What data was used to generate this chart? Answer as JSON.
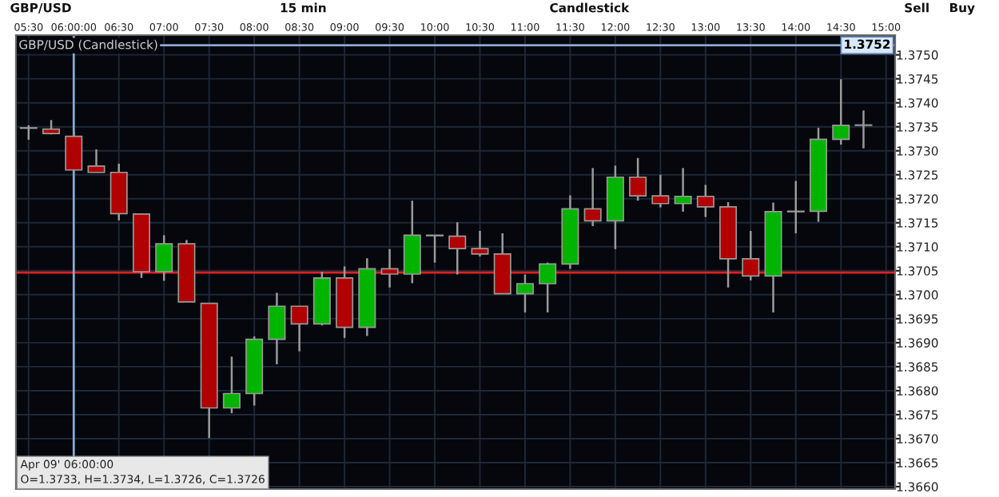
{
  "chart_data": {
    "type": "candlestick",
    "title": "GBP/USD (Candlestick)",
    "x": [
      5.5,
      5.75,
      6.0,
      6.25,
      6.5,
      6.75,
      7.0,
      7.25,
      7.5,
      7.75,
      8.0,
      8.25,
      8.5,
      8.75,
      9.0,
      9.25,
      9.5,
      9.75,
      10.0,
      10.25,
      10.5,
      10.75,
      11.0,
      11.25,
      11.5,
      11.75,
      12.0,
      12.25,
      12.5,
      12.75,
      13.0,
      13.25,
      13.5,
      13.75,
      14.0,
      14.25,
      14.5,
      14.75
    ],
    "ohlc": [
      [
        1.37347,
        1.37353,
        1.37323,
        1.37347
      ],
      [
        1.37345,
        1.37364,
        1.37334,
        1.37336
      ],
      [
        1.3733,
        1.3734,
        1.3726,
        1.3726
      ],
      [
        1.37268,
        1.37303,
        1.37255,
        1.37255
      ],
      [
        1.37255,
        1.37273,
        1.37155,
        1.37169
      ],
      [
        1.37168,
        1.37168,
        1.37035,
        1.37048
      ],
      [
        1.37048,
        1.37124,
        1.37029,
        1.37106
      ],
      [
        1.37106,
        1.37114,
        1.36985,
        1.36985
      ],
      [
        1.36982,
        1.36982,
        1.36701,
        1.36764
      ],
      [
        1.36764,
        1.36871,
        1.36753,
        1.36794
      ],
      [
        1.36794,
        1.36913,
        1.36769,
        1.36907
      ],
      [
        1.36907,
        1.37004,
        1.36855,
        1.36976
      ],
      [
        1.36976,
        1.36976,
        1.36882,
        1.36939
      ],
      [
        1.36939,
        1.37048,
        1.36936,
        1.37035
      ],
      [
        1.37035,
        1.37059,
        1.3691,
        1.36932
      ],
      [
        1.36932,
        1.37076,
        1.36914,
        1.37054
      ],
      [
        1.37054,
        1.37095,
        1.37015,
        1.37043
      ],
      [
        1.37043,
        1.37196,
        1.37024,
        1.37124
      ],
      [
        1.37124,
        1.37124,
        1.37067,
        1.37123
      ],
      [
        1.37122,
        1.37151,
        1.37042,
        1.37096
      ],
      [
        1.37096,
        1.37133,
        1.3708,
        1.37085
      ],
      [
        1.37085,
        1.37128,
        1.37002,
        1.37002
      ],
      [
        1.37002,
        1.37042,
        1.36963,
        1.37023
      ],
      [
        1.37023,
        1.37067,
        1.36963,
        1.37064
      ],
      [
        1.37064,
        1.37207,
        1.37054,
        1.37179
      ],
      [
        1.37179,
        1.37264,
        1.37143,
        1.37154
      ],
      [
        1.37154,
        1.37269,
        1.37095,
        1.37245
      ],
      [
        1.37245,
        1.37285,
        1.37196,
        1.37206
      ],
      [
        1.37206,
        1.3725,
        1.37182,
        1.3719
      ],
      [
        1.3719,
        1.37264,
        1.37173,
        1.37205
      ],
      [
        1.37205,
        1.37229,
        1.37162,
        1.37183
      ],
      [
        1.37183,
        1.37193,
        1.37015,
        1.37075
      ],
      [
        1.37075,
        1.37133,
        1.3703,
        1.37039
      ],
      [
        1.37039,
        1.37192,
        1.36963,
        1.37173
      ],
      [
        1.37173,
        1.37237,
        1.37128,
        1.37174
      ],
      [
        1.37174,
        1.37348,
        1.37152,
        1.37324
      ],
      [
        1.37324,
        1.37449,
        1.37313,
        1.37353
      ],
      [
        1.37353,
        1.37384,
        1.37305,
        1.37353
      ]
    ],
    "colors": [
      "#c8c8c8",
      "#b00000",
      "#b00000",
      "#b00000",
      "#b00000",
      "#b00000",
      "#00b400",
      "#b00000",
      "#b00000",
      "#00b400",
      "#00b400",
      "#00b400",
      "#b00000",
      "#00b400",
      "#b00000",
      "#00b400",
      "#b00000",
      "#00b400",
      "#b00000",
      "#b00000",
      "#b00000",
      "#b00000",
      "#00b400",
      "#00b400",
      "#00b400",
      "#b00000",
      "#00b400",
      "#b00000",
      "#b00000",
      "#00b400",
      "#b00000",
      "#b00000",
      "#b00000",
      "#00b400",
      "#00b400",
      "#00b400",
      "#00b400",
      "#ffffff"
    ],
    "xlim": [
      5.36,
      15.1
    ],
    "xticks": [
      {
        "value": 5.5,
        "label": "05:30"
      },
      {
        "value": 6.0,
        "label": "06:00:00"
      },
      {
        "value": 6.5,
        "label": "06:30"
      },
      {
        "value": 7.0,
        "label": "07:00"
      },
      {
        "value": 7.5,
        "label": "07:30"
      },
      {
        "value": 8.0,
        "label": "08:00"
      },
      {
        "value": 8.5,
        "label": "08:30"
      },
      {
        "value": 9.0,
        "label": "09:00"
      },
      {
        "value": 9.5,
        "label": "09:30"
      },
      {
        "value": 10.0,
        "label": "10:00"
      },
      {
        "value": 10.5,
        "label": "10:30"
      },
      {
        "value": 11.0,
        "label": "11:00"
      },
      {
        "value": 11.5,
        "label": "11:30"
      },
      {
        "value": 12.0,
        "label": "12:00"
      },
      {
        "value": 12.5,
        "label": "12:30"
      },
      {
        "value": 13.0,
        "label": "13:00"
      },
      {
        "value": 13.5,
        "label": "13:30"
      },
      {
        "value": 14.0,
        "label": "14:00"
      },
      {
        "value": 14.5,
        "label": "14:30"
      },
      {
        "value": 15.0,
        "label": "15:00"
      }
    ],
    "ylim": [
      1.36595,
      1.37541
    ],
    "yticks": [
      {
        "value": 1.366,
        "label": "1.3660"
      },
      {
        "value": 1.3665,
        "label": "1.3665"
      },
      {
        "value": 1.367,
        "label": "1.3670"
      },
      {
        "value": 1.3675,
        "label": "1.3675"
      },
      {
        "value": 1.368,
        "label": "1.3680"
      },
      {
        "value": 1.3685,
        "label": "1.3685"
      },
      {
        "value": 1.369,
        "label": "1.3690"
      },
      {
        "value": 1.3695,
        "label": "1.3695"
      },
      {
        "value": 1.37,
        "label": "1.3700"
      },
      {
        "value": 1.3705,
        "label": "1.3705"
      },
      {
        "value": 1.371,
        "label": "1.3710"
      },
      {
        "value": 1.3715,
        "label": "1.3715"
      },
      {
        "value": 1.372,
        "label": "1.3720"
      },
      {
        "value": 1.3725,
        "label": "1.3725"
      },
      {
        "value": 1.373,
        "label": "1.3730"
      },
      {
        "value": 1.3735,
        "label": "1.3735"
      },
      {
        "value": 1.374,
        "label": "1.3740"
      },
      {
        "value": 1.3745,
        "label": "1.3745"
      },
      {
        "value": 1.375,
        "label": "1.3750"
      }
    ],
    "grid": true,
    "ref_lines": [
      {
        "axis": "y",
        "value": 1.37046,
        "label": null,
        "color": "#e02020"
      },
      {
        "axis": "x",
        "value": 6.0,
        "label": null,
        "color": "#8aa8d0"
      },
      {
        "axis": "y",
        "value": 1.3752,
        "label": "1.3752",
        "color": "#8aa8d0"
      }
    ],
    "annotations": [
      "GBP/USD",
      "15 min",
      "Candlestick",
      "Sell",
      "Buy",
      "Apr 09' 06:00:00",
      "O=1.3733, H=1.3734, L=1.3726, C=1.3726"
    ]
  }
}
